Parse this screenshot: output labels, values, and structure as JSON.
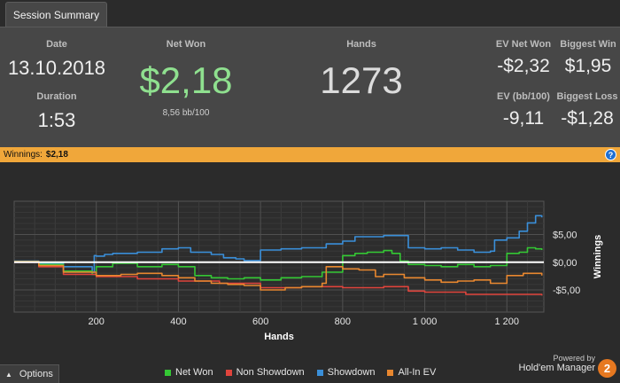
{
  "tab": {
    "label": "Session Summary"
  },
  "summary": {
    "date_label": "Date",
    "date_value": "13.10.2018",
    "duration_label": "Duration",
    "duration_value": "1:53",
    "netwon_label": "Net Won",
    "netwon_value": "$2,18",
    "bb_value": "8,56 bb/100",
    "hands_label": "Hands",
    "hands_value": "1273",
    "ev_netwon_label": "EV Net Won",
    "ev_netwon_value": "-$2,32",
    "biggest_win_label": "Biggest Win",
    "biggest_win_value": "$1,95",
    "ev_bb_label": "EV (bb/100)",
    "ev_bb_value": "-9,11",
    "biggest_loss_label": "Biggest Loss",
    "biggest_loss_value": "-$1,28"
  },
  "winnings_bar": {
    "label": "Winnings:",
    "value": "$2,18",
    "help_icon": "help-icon",
    "help_glyph": "?"
  },
  "colors": {
    "net_won": "#34c834",
    "non_showdown": "#e0443c",
    "showdown": "#3a8fd9",
    "all_in_ev": "#e8872f",
    "accent": "#f0a73a"
  },
  "chart_data": {
    "type": "line",
    "xlabel": "Hands",
    "ylabel": "Winnings",
    "xlim": [
      0,
      1290
    ],
    "ylim": [
      -9,
      11
    ],
    "x_ticks": [
      {
        "value": 200,
        "label": "200"
      },
      {
        "value": 400,
        "label": "400"
      },
      {
        "value": 600,
        "label": "600"
      },
      {
        "value": 800,
        "label": "800"
      },
      {
        "value": 1000,
        "label": "1 000"
      },
      {
        "value": 1200,
        "label": "1 200"
      }
    ],
    "y_ticks": [
      {
        "value": 5,
        "label": "$5,00"
      },
      {
        "value": 0,
        "label": "$0,00"
      },
      {
        "value": -5,
        "label": "-$5,00"
      }
    ],
    "series": [
      {
        "name": "Showdown",
        "color": "#3a8fd9",
        "x": [
          0,
          60,
          120,
          190,
          195,
          200,
          220,
          240,
          300,
          360,
          400,
          430,
          480,
          510,
          540,
          560,
          600,
          650,
          700,
          750,
          760,
          800,
          830,
          900,
          960,
          1000,
          1040,
          1080,
          1120,
          1160,
          1170,
          1200,
          1230,
          1250,
          1270,
          1285
        ],
        "y": [
          0.2,
          -0.2,
          -0.8,
          -1.8,
          1.2,
          1.1,
          1.4,
          1.6,
          1.8,
          2.4,
          2.6,
          1.8,
          1.4,
          0.8,
          0.6,
          0.3,
          2.2,
          2.4,
          2.6,
          2.6,
          3.3,
          3.8,
          4.6,
          4.8,
          2.6,
          2.4,
          2.6,
          2.2,
          1.8,
          2.0,
          4.0,
          4.4,
          5.6,
          7.1,
          8.4,
          8.1
        ]
      },
      {
        "name": "Net Won",
        "color": "#34c834",
        "x": [
          0,
          60,
          120,
          190,
          200,
          240,
          300,
          360,
          400,
          440,
          480,
          520,
          560,
          600,
          650,
          700,
          750,
          800,
          830,
          860,
          900,
          920,
          940,
          960,
          1000,
          1040,
          1080,
          1120,
          1160,
          1200,
          1230,
          1250,
          1270,
          1285
        ],
        "y": [
          0.1,
          -0.4,
          -1.6,
          -2.2,
          -0.8,
          -0.2,
          -0.8,
          -0.4,
          -0.8,
          -2.4,
          -2.8,
          -3.0,
          -2.8,
          -3.2,
          -2.8,
          -2.6,
          -1.8,
          1.2,
          1.6,
          1.8,
          2.1,
          1.6,
          0.2,
          -0.4,
          -0.6,
          -0.8,
          -0.4,
          -0.8,
          -0.6,
          1.6,
          1.8,
          2.6,
          2.4,
          2.2
        ]
      },
      {
        "name": "Non Showdown",
        "color": "#e0443c",
        "x": [
          0,
          60,
          120,
          200,
          300,
          400,
          500,
          600,
          700,
          800,
          900,
          960,
          1000,
          1100,
          1200,
          1285
        ],
        "y": [
          0,
          -0.8,
          -2.2,
          -2.6,
          -3.0,
          -3.4,
          -3.8,
          -4.6,
          -4.4,
          -4.6,
          -4.4,
          -5.2,
          -5.4,
          -5.8,
          -5.8,
          -6.0
        ]
      },
      {
        "name": "All-In EV",
        "color": "#e8872f",
        "x": [
          0,
          60,
          120,
          200,
          260,
          300,
          360,
          400,
          440,
          480,
          520,
          560,
          600,
          660,
          700,
          750,
          760,
          800,
          840,
          880,
          900,
          950,
          1000,
          1040,
          1080,
          1120,
          1160,
          1200,
          1240,
          1285
        ],
        "y": [
          0.1,
          -0.6,
          -1.8,
          -2.4,
          -2.2,
          -2.0,
          -2.4,
          -2.8,
          -3.4,
          -3.8,
          -4.0,
          -4.2,
          -5.0,
          -4.6,
          -4.4,
          -3.8,
          -0.8,
          -1.2,
          -1.4,
          -2.6,
          -2.2,
          -2.8,
          -3.2,
          -3.6,
          -3.4,
          -3.2,
          -3.8,
          -2.4,
          -2.0,
          -2.4
        ]
      }
    ]
  },
  "footer": {
    "options_label": "Options",
    "legend": [
      {
        "label": "Net Won",
        "color": "#34c834"
      },
      {
        "label": "Non Showdown",
        "color": "#e0443c"
      },
      {
        "label": "Showdown",
        "color": "#3a8fd9"
      },
      {
        "label": "All-In EV",
        "color": "#e8872f"
      }
    ],
    "powered_by": "Powered by",
    "brand": "Hold'em Manager",
    "brand_logo_text": "2"
  }
}
